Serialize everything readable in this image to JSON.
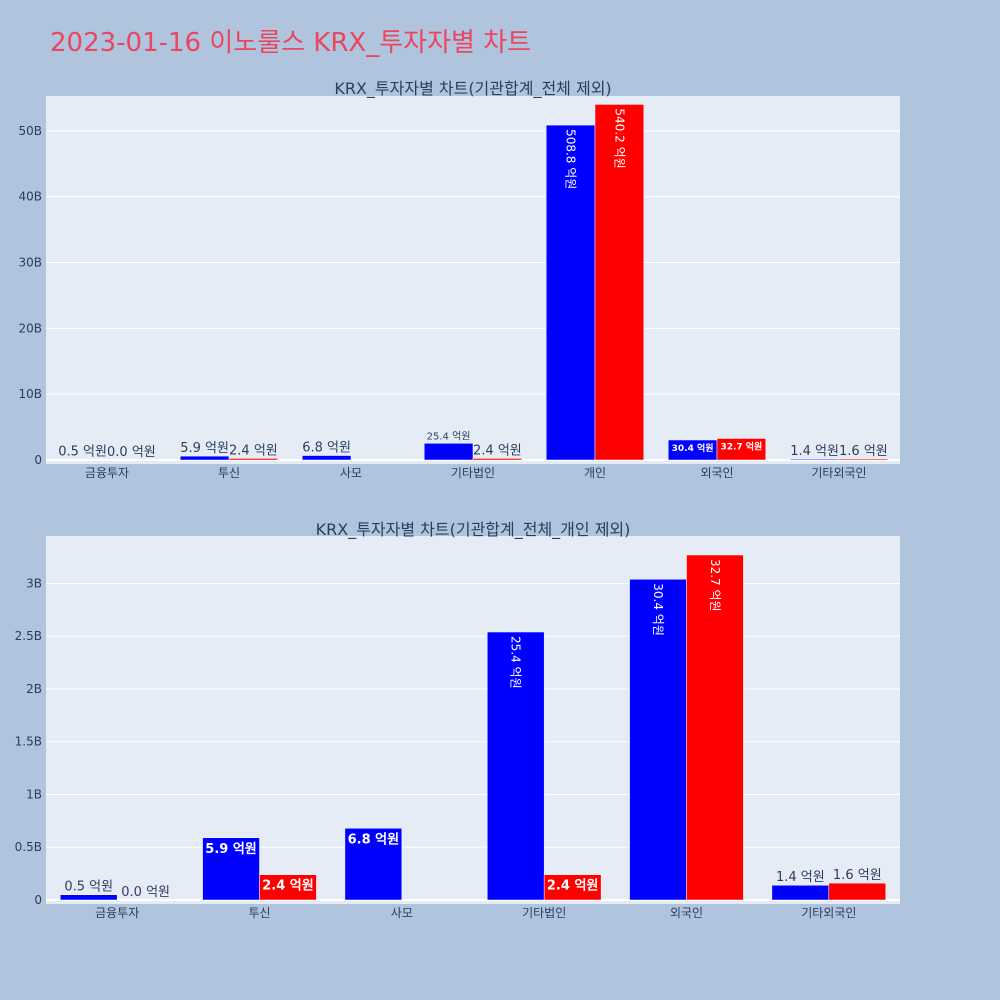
{
  "page": {
    "title": "2023-01-16 이노룰스 KRX_투자자별 차트"
  },
  "colors": {
    "buy": "#0000ff",
    "sell": "#ff0000",
    "plot_bg": "#e5ecf6",
    "paper_bg": "#b0c4de",
    "title": "#e8475f"
  },
  "chart_data": [
    {
      "type": "bar",
      "title": "KRX_투자자별 차트(기관합계_전체 제외)",
      "categories": [
        "금융투자",
        "투신",
        "사모",
        "기타법인",
        "개인",
        "외국인",
        "기타외국인"
      ],
      "series": [
        {
          "color": "#0000ff",
          "values": [
            0.05,
            0.59,
            0.68,
            2.54,
            50.88,
            3.04,
            0.14
          ],
          "labels": [
            "0.5 억원",
            "5.9 억원",
            "6.8 억원",
            "25.4 억원",
            "508.8 억원",
            "30.4 억원",
            "1.4 억원"
          ]
        },
        {
          "color": "#ff0000",
          "values": [
            0.0,
            0.24,
            null,
            0.24,
            54.02,
            3.27,
            0.16
          ],
          "labels": [
            "0.0 억원",
            "2.4 억원",
            "",
            "2.4 억원",
            "540.2 억원",
            "32.7 억원",
            "1.6 억원"
          ]
        }
      ],
      "yticks": [
        0,
        10,
        20,
        30,
        40,
        50
      ],
      "ytick_labels": [
        "0",
        "10B",
        "20B",
        "30B",
        "40B",
        "50B"
      ],
      "ylim": [
        0,
        55.3
      ],
      "grid": true,
      "legend": "none"
    },
    {
      "type": "bar",
      "title": "KRX_투자자별 차트(기관합계_전체_개인 제외)",
      "categories": [
        "금융투자",
        "투신",
        "사모",
        "기타법인",
        "외국인",
        "기타외국인"
      ],
      "series": [
        {
          "color": "#0000ff",
          "values": [
            0.05,
            0.59,
            0.68,
            2.54,
            3.04,
            0.14
          ],
          "labels": [
            "0.5 억원",
            "5.9 억원",
            "6.8 억원",
            "25.4 억원",
            "30.4 억원",
            "1.4 억원"
          ]
        },
        {
          "color": "#ff0000",
          "values": [
            0.0,
            0.24,
            null,
            0.24,
            3.27,
            0.16
          ],
          "labels": [
            "0.0 억원",
            "2.4 억원",
            "",
            "2.4 억원",
            "32.7 억원",
            "1.6 억원"
          ]
        }
      ],
      "yticks": [
        0,
        0.5,
        1,
        1.5,
        2,
        2.5,
        3
      ],
      "ytick_labels": [
        "0",
        "0.5B",
        "1B",
        "1.5B",
        "2B",
        "2.5B",
        "3B"
      ],
      "ylim": [
        0,
        3.45
      ],
      "grid": true,
      "legend": "none"
    }
  ]
}
